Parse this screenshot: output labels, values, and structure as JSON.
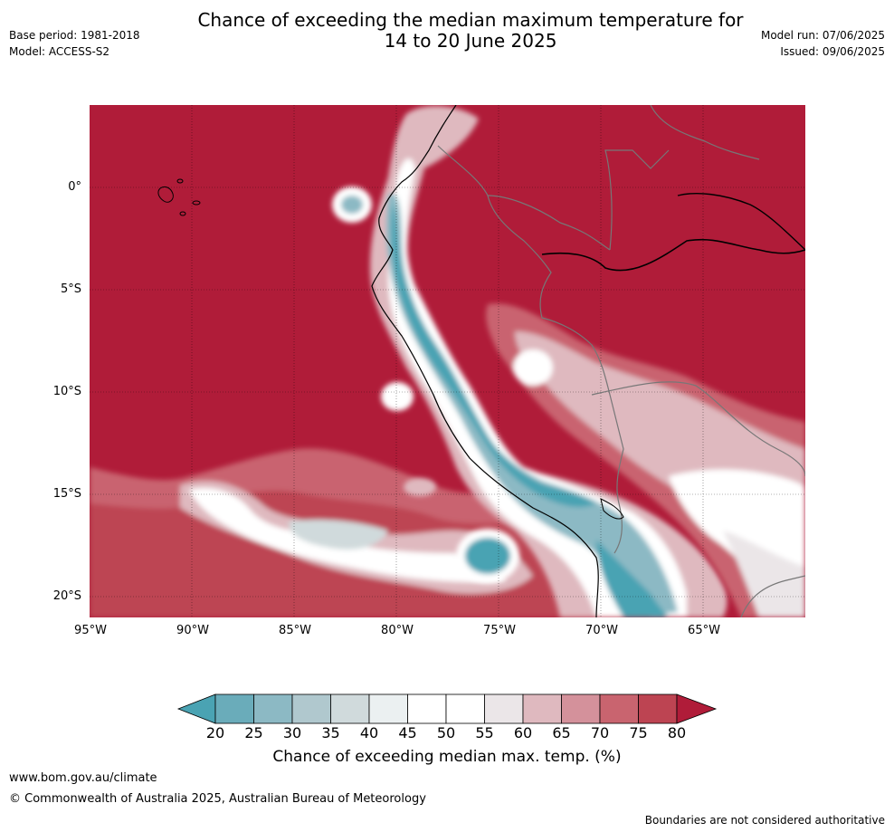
{
  "title": {
    "line1": "Chance of exceeding the median maximum temperature for",
    "line2": "14 to 20 June 2025"
  },
  "meta_left": {
    "base_period": "Base period: 1981-2018",
    "model": "Model: ACCESS-S2"
  },
  "meta_right": {
    "model_run": "Model run: 07/06/2025",
    "issued": "Issued: 09/06/2025"
  },
  "axes": {
    "lat_labels": [
      "0°",
      "5°S",
      "10°S",
      "15°S",
      "20°S"
    ],
    "lon_labels": [
      "95°W",
      "90°W",
      "85°W",
      "80°W",
      "75°W",
      "70°W",
      "65°W"
    ]
  },
  "colorbar": {
    "ticks": [
      "20",
      "25",
      "30",
      "35",
      "40",
      "45",
      "50",
      "55",
      "60",
      "65",
      "70",
      "75",
      "80"
    ],
    "label": "Chance of exceeding median max. temp. (%)",
    "colors": [
      "#4aa3b3",
      "#6aacba",
      "#8cb9c4",
      "#b0c8ce",
      "#d0dadc",
      "#ebf0f1",
      "#ffffff",
      "#ffffff",
      "#ebe6e8",
      "#dfb9bf",
      "#d4919b",
      "#c9646f",
      "#bd4452",
      "#b01c39"
    ]
  },
  "footer": {
    "url": "www.bom.gov.au/climate",
    "copyright": "© Commonwealth of Australia 2025, Australian Bureau of Meteorology",
    "note": "Boundaries are not considered authoritative"
  }
}
